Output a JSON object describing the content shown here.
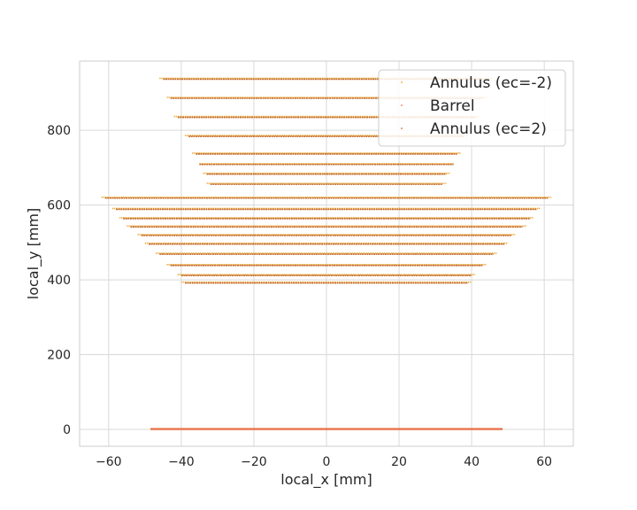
{
  "chart_data": {
    "type": "scatter",
    "title": "",
    "xlabel": "local_x [mm]",
    "ylabel": "local_y [mm]",
    "xlim": [
      -68,
      68
    ],
    "ylim": [
      -45,
      985
    ],
    "xticks": [
      -60,
      -40,
      -20,
      0,
      20,
      40,
      60
    ],
    "yticks": [
      0,
      200,
      400,
      600,
      800
    ],
    "xtick_labels": [
      "−60",
      "−40",
      "−20",
      "0",
      "20",
      "40",
      "60"
    ],
    "ytick_labels": [
      "0",
      "200",
      "400",
      "600",
      "800"
    ],
    "grid": true,
    "legend_position": "top-right",
    "series": [
      {
        "name": "Annulus (ec=-2)",
        "color": "#e7a42a",
        "marker": "dot",
        "rows": [
          {
            "y": 938,
            "x": [
              -46,
              46
            ]
          },
          {
            "y": 887,
            "x": [
              -44,
              44
            ]
          },
          {
            "y": 836,
            "x": [
              -42,
              42
            ]
          },
          {
            "y": 785,
            "x": [
              -39,
              39
            ]
          },
          {
            "y": 738,
            "x": [
              -37,
              37
            ]
          },
          {
            "y": 710,
            "x": [
              -35,
              35
            ]
          },
          {
            "y": 684,
            "x": [
              -34,
              34
            ]
          },
          {
            "y": 657,
            "x": [
              -33,
              33
            ]
          },
          {
            "y": 620,
            "x": [
              -62,
              62
            ]
          },
          {
            "y": 590,
            "x": [
              -59,
              59
            ]
          },
          {
            "y": 565,
            "x": [
              -57,
              57
            ]
          },
          {
            "y": 543,
            "x": [
              -55,
              55
            ]
          },
          {
            "y": 520,
            "x": [
              -52,
              52
            ]
          },
          {
            "y": 497,
            "x": [
              -50,
              50
            ]
          },
          {
            "y": 470,
            "x": [
              -47,
              47
            ]
          },
          {
            "y": 440,
            "x": [
              -44,
              44
            ]
          },
          {
            "y": 413,
            "x": [
              -41,
              41
            ]
          },
          {
            "y": 393,
            "x": [
              -40,
              40
            ]
          }
        ]
      },
      {
        "name": "Barrel",
        "color": "#e8734a",
        "marker": "dot",
        "rows": [
          {
            "y": 0,
            "x": [
              -48.5,
              48.5
            ]
          }
        ]
      },
      {
        "name": "Annulus (ec=2)",
        "color": "#c4692a",
        "marker": "dot",
        "rows": [
          {
            "y": 938,
            "x": [
              -45,
              45
            ]
          },
          {
            "y": 887,
            "x": [
              -43,
              43
            ]
          },
          {
            "y": 836,
            "x": [
              -41,
              41
            ]
          },
          {
            "y": 785,
            "x": [
              -38,
              38
            ]
          },
          {
            "y": 738,
            "x": [
              -36,
              36
            ]
          },
          {
            "y": 710,
            "x": [
              -35,
              35
            ]
          },
          {
            "y": 684,
            "x": [
              -33,
              33
            ]
          },
          {
            "y": 657,
            "x": [
              -32,
              32
            ]
          },
          {
            "y": 620,
            "x": [
              -61,
              61
            ]
          },
          {
            "y": 590,
            "x": [
              -58,
              58
            ]
          },
          {
            "y": 565,
            "x": [
              -56,
              56
            ]
          },
          {
            "y": 543,
            "x": [
              -54,
              54
            ]
          },
          {
            "y": 520,
            "x": [
              -51,
              51
            ]
          },
          {
            "y": 497,
            "x": [
              -49,
              49
            ]
          },
          {
            "y": 470,
            "x": [
              -46,
              46
            ]
          },
          {
            "y": 440,
            "x": [
              -43,
              43
            ]
          },
          {
            "y": 413,
            "x": [
              -40,
              40
            ]
          },
          {
            "y": 393,
            "x": [
              -39,
              39
            ]
          }
        ]
      }
    ]
  }
}
